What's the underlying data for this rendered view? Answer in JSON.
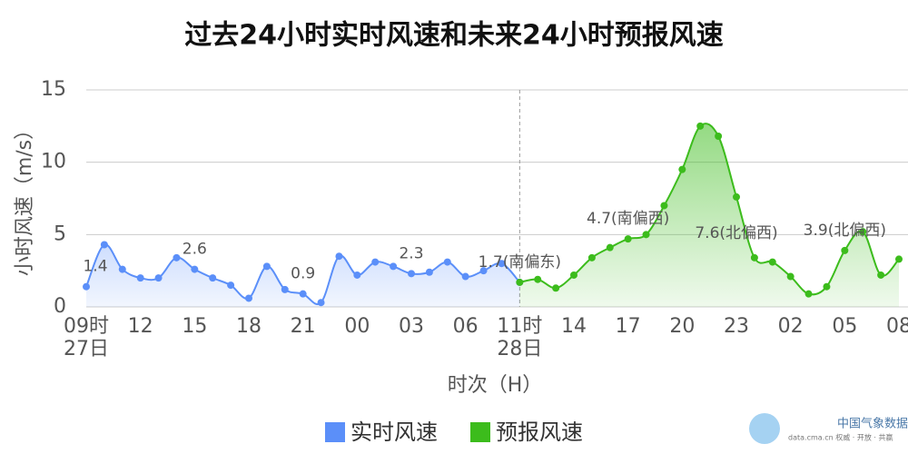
{
  "chart_data": {
    "type": "line",
    "title": "过去24小时实时风速和未来24小时预报风速",
    "y_label": "小时风速（m/s）",
    "x_label": "时次（H）",
    "categories": [
      "09时",
      null,
      null,
      "12",
      null,
      null,
      "15",
      null,
      null,
      "18",
      null,
      null,
      "21",
      null,
      null,
      "00",
      null,
      null,
      "03",
      null,
      null,
      "06",
      null,
      null,
      "11时",
      null,
      null,
      "14",
      null,
      null,
      "17",
      null,
      null,
      "20",
      null,
      null,
      "23",
      null,
      null,
      "02",
      null,
      null,
      "05",
      null,
      null,
      "08"
    ],
    "dates": [
      "27日",
      null,
      null,
      null,
      null,
      null,
      null,
      null,
      null,
      null,
      null,
      null,
      null,
      null,
      null,
      null,
      null,
      null,
      null,
      null,
      null,
      null,
      null,
      null,
      "28日",
      null,
      null,
      null,
      null,
      null,
      null,
      null,
      null,
      null,
      null,
      null,
      null,
      null,
      null,
      null,
      null,
      null,
      null,
      null,
      null,
      null
    ],
    "series": [
      {
        "name": "实时风速",
        "color": "#5b8ff9",
        "values": [
          1.4,
          4.3,
          2.6,
          2.0,
          2.0,
          3.4,
          2.6,
          2.0,
          1.5,
          0.6,
          2.8,
          1.2,
          0.9,
          0.3,
          3.5,
          2.2,
          3.1,
          2.8,
          2.3,
          2.4,
          3.1,
          2.1,
          2.5,
          3.0,
          1.7,
          null,
          null,
          null,
          null,
          null,
          null,
          null,
          null,
          null,
          null,
          null,
          null,
          null,
          null,
          null,
          null,
          null,
          null,
          null,
          null,
          null
        ],
        "value_labels": [
          "1.4",
          null,
          null,
          null,
          null,
          null,
          "2.6",
          null,
          null,
          null,
          null,
          null,
          "0.9",
          null,
          null,
          null,
          null,
          null,
          "2.3",
          null,
          null,
          null,
          null,
          null,
          null,
          null,
          null,
          null,
          null,
          null,
          null,
          null,
          null,
          null,
          null,
          null,
          null,
          null,
          null,
          null,
          null,
          null,
          null,
          null,
          null,
          null
        ]
      },
      {
        "name": "预报风速",
        "color": "#3cbc1c",
        "values": [
          null,
          null,
          null,
          null,
          null,
          null,
          null,
          null,
          null,
          null,
          null,
          null,
          null,
          null,
          null,
          null,
          null,
          null,
          null,
          null,
          null,
          null,
          null,
          null,
          1.7,
          1.9,
          1.3,
          2.2,
          3.4,
          4.1,
          4.7,
          5.0,
          7.0,
          9.5,
          12.5,
          11.8,
          7.6,
          3.4,
          3.1,
          2.1,
          0.9,
          1.4,
          3.9,
          5.2,
          2.2,
          3.3
        ],
        "value_labels": [
          null,
          null,
          null,
          null,
          null,
          null,
          null,
          null,
          null,
          null,
          null,
          null,
          null,
          null,
          null,
          null,
          null,
          null,
          null,
          null,
          null,
          null,
          null,
          null,
          "1.7(南偏东)",
          null,
          null,
          null,
          null,
          null,
          "4.7(南偏西)",
          null,
          null,
          null,
          null,
          null,
          "7.6(北偏西)",
          null,
          null,
          null,
          null,
          null,
          "3.9(北偏西)",
          null,
          null,
          null
        ]
      }
    ],
    "ylim": [
      0,
      15
    ],
    "yticks": [
      0,
      5,
      10,
      15
    ],
    "grid": true,
    "logo": "中国气象数据网",
    "logo_sub": "data.cma.cn 权威 · 开放 · 共赢"
  }
}
